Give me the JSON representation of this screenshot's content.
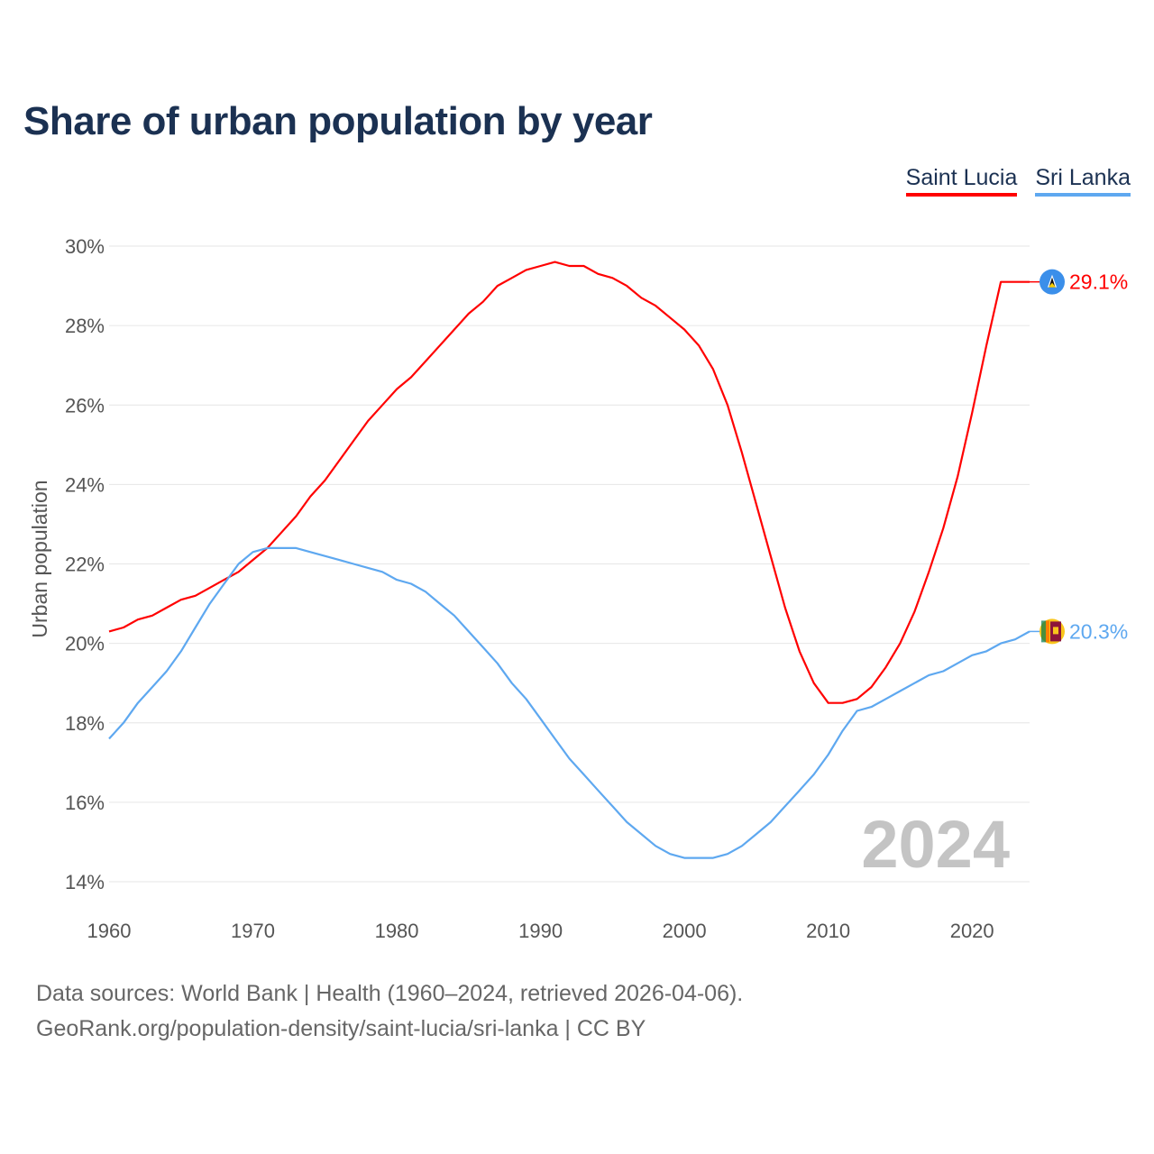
{
  "title": "Share of urban population by year",
  "footer": {
    "line1": "Data sources: World Bank | Health (1960–2024, retrieved 2026-04-06).",
    "line2": "GeoRank.org/population-density/saint-lucia/sri-lanka | CC BY"
  },
  "chart_data": {
    "type": "line",
    "title": "Share of urban population by year",
    "xlabel": "",
    "ylabel": "Urban population",
    "xlim": [
      1960,
      2024
    ],
    "ylim": [
      14,
      30
    ],
    "xticks": [
      1960,
      1970,
      1980,
      1990,
      2000,
      2010,
      2020
    ],
    "yticks": [
      "14%",
      "16%",
      "18%",
      "20%",
      "22%",
      "24%",
      "26%",
      "28%",
      "30%"
    ],
    "ytick_values": [
      14,
      16,
      18,
      20,
      22,
      24,
      26,
      28,
      30
    ],
    "watermark": "2024",
    "legend_position": "top-right",
    "grid": true,
    "x_start": 1960,
    "series": [
      {
        "name": "Saint Lucia",
        "color": "#ff0000",
        "end_label": "29.1%",
        "flag": "saint-lucia-flag",
        "values": [
          20.3,
          20.4,
          20.6,
          20.7,
          20.9,
          21.1,
          21.2,
          21.4,
          21.6,
          21.8,
          22.1,
          22.4,
          22.8,
          23.2,
          23.7,
          24.1,
          24.6,
          25.1,
          25.6,
          26.0,
          26.4,
          26.7,
          27.1,
          27.5,
          27.9,
          28.3,
          28.6,
          29.0,
          29.2,
          29.4,
          29.5,
          29.6,
          29.5,
          29.5,
          29.3,
          29.2,
          29.0,
          28.7,
          28.5,
          28.2,
          27.9,
          27.5,
          26.9,
          26.0,
          24.8,
          23.5,
          22.2,
          20.9,
          19.8,
          19.0,
          18.5,
          18.5,
          18.6,
          18.9,
          19.4,
          20.0,
          20.8,
          21.8,
          22.9,
          24.2,
          25.8,
          27.5,
          29.1,
          29.1,
          29.1
        ]
      },
      {
        "name": "Sri Lanka",
        "color": "#5ea8f0",
        "end_label": "20.3%",
        "flag": "sri-lanka-flag",
        "values": [
          17.6,
          18.0,
          18.5,
          18.9,
          19.3,
          19.8,
          20.4,
          21.0,
          21.5,
          22.0,
          22.3,
          22.4,
          22.4,
          22.4,
          22.3,
          22.2,
          22.1,
          22.0,
          21.9,
          21.8,
          21.6,
          21.5,
          21.3,
          21.0,
          20.7,
          20.3,
          19.9,
          19.5,
          19.0,
          18.6,
          18.1,
          17.6,
          17.1,
          16.7,
          16.3,
          15.9,
          15.5,
          15.2,
          14.9,
          14.7,
          14.6,
          14.6,
          14.6,
          14.7,
          14.9,
          15.2,
          15.5,
          15.9,
          16.3,
          16.7,
          17.2,
          17.8,
          18.3,
          18.4,
          18.6,
          18.8,
          19.0,
          19.2,
          19.3,
          19.5,
          19.7,
          19.8,
          20.0,
          20.1,
          20.3
        ]
      }
    ]
  }
}
